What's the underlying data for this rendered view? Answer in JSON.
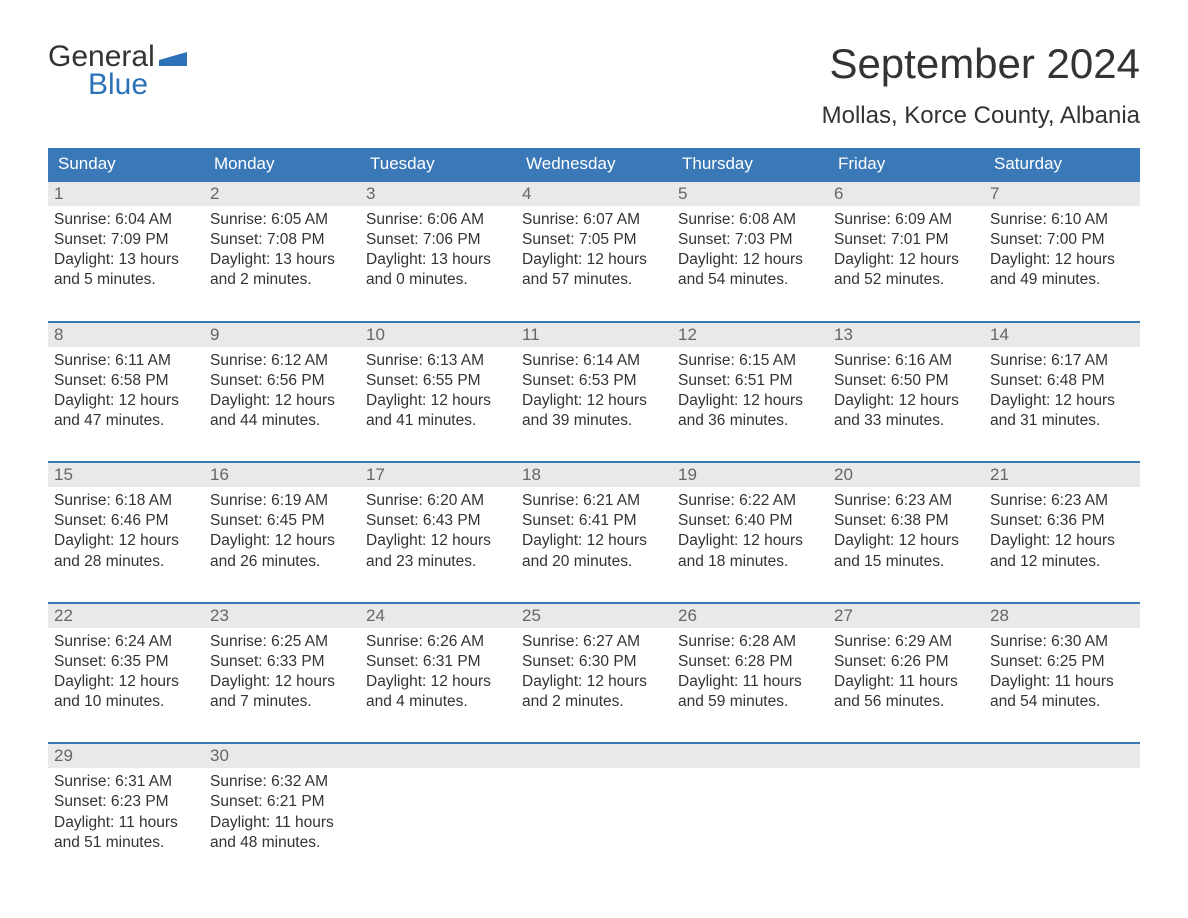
{
  "brand": {
    "word1": "General",
    "word2": "Blue",
    "word1_color": "#333333",
    "word2_color": "#2c72b8",
    "flag_color": "#2c72b8"
  },
  "title": "September 2024",
  "location": "Mollas, Korce County, Albania",
  "colors": {
    "header_bg": "#3b78b8",
    "header_fg": "#ffffff",
    "row_divider": "#3b78b8",
    "daynum_bg": "#e9e9e9",
    "daynum_fg": "#666666",
    "text": "#333333",
    "background": "#ffffff"
  },
  "typography": {
    "title_fontsize": 42,
    "location_fontsize": 24,
    "dow_fontsize": 17,
    "body_fontsize": 15.5
  },
  "days_of_week": [
    "Sunday",
    "Monday",
    "Tuesday",
    "Wednesday",
    "Thursday",
    "Friday",
    "Saturday"
  ],
  "weeks": [
    [
      {
        "n": "1",
        "sunrise": "Sunrise: 6:04 AM",
        "sunset": "Sunset: 7:09 PM",
        "d1": "Daylight: 13 hours",
        "d2": "and 5 minutes."
      },
      {
        "n": "2",
        "sunrise": "Sunrise: 6:05 AM",
        "sunset": "Sunset: 7:08 PM",
        "d1": "Daylight: 13 hours",
        "d2": "and 2 minutes."
      },
      {
        "n": "3",
        "sunrise": "Sunrise: 6:06 AM",
        "sunset": "Sunset: 7:06 PM",
        "d1": "Daylight: 13 hours",
        "d2": "and 0 minutes."
      },
      {
        "n": "4",
        "sunrise": "Sunrise: 6:07 AM",
        "sunset": "Sunset: 7:05 PM",
        "d1": "Daylight: 12 hours",
        "d2": "and 57 minutes."
      },
      {
        "n": "5",
        "sunrise": "Sunrise: 6:08 AM",
        "sunset": "Sunset: 7:03 PM",
        "d1": "Daylight: 12 hours",
        "d2": "and 54 minutes."
      },
      {
        "n": "6",
        "sunrise": "Sunrise: 6:09 AM",
        "sunset": "Sunset: 7:01 PM",
        "d1": "Daylight: 12 hours",
        "d2": "and 52 minutes."
      },
      {
        "n": "7",
        "sunrise": "Sunrise: 6:10 AM",
        "sunset": "Sunset: 7:00 PM",
        "d1": "Daylight: 12 hours",
        "d2": "and 49 minutes."
      }
    ],
    [
      {
        "n": "8",
        "sunrise": "Sunrise: 6:11 AM",
        "sunset": "Sunset: 6:58 PM",
        "d1": "Daylight: 12 hours",
        "d2": "and 47 minutes."
      },
      {
        "n": "9",
        "sunrise": "Sunrise: 6:12 AM",
        "sunset": "Sunset: 6:56 PM",
        "d1": "Daylight: 12 hours",
        "d2": "and 44 minutes."
      },
      {
        "n": "10",
        "sunrise": "Sunrise: 6:13 AM",
        "sunset": "Sunset: 6:55 PM",
        "d1": "Daylight: 12 hours",
        "d2": "and 41 minutes."
      },
      {
        "n": "11",
        "sunrise": "Sunrise: 6:14 AM",
        "sunset": "Sunset: 6:53 PM",
        "d1": "Daylight: 12 hours",
        "d2": "and 39 minutes."
      },
      {
        "n": "12",
        "sunrise": "Sunrise: 6:15 AM",
        "sunset": "Sunset: 6:51 PM",
        "d1": "Daylight: 12 hours",
        "d2": "and 36 minutes."
      },
      {
        "n": "13",
        "sunrise": "Sunrise: 6:16 AM",
        "sunset": "Sunset: 6:50 PM",
        "d1": "Daylight: 12 hours",
        "d2": "and 33 minutes."
      },
      {
        "n": "14",
        "sunrise": "Sunrise: 6:17 AM",
        "sunset": "Sunset: 6:48 PM",
        "d1": "Daylight: 12 hours",
        "d2": "and 31 minutes."
      }
    ],
    [
      {
        "n": "15",
        "sunrise": "Sunrise: 6:18 AM",
        "sunset": "Sunset: 6:46 PM",
        "d1": "Daylight: 12 hours",
        "d2": "and 28 minutes."
      },
      {
        "n": "16",
        "sunrise": "Sunrise: 6:19 AM",
        "sunset": "Sunset: 6:45 PM",
        "d1": "Daylight: 12 hours",
        "d2": "and 26 minutes."
      },
      {
        "n": "17",
        "sunrise": "Sunrise: 6:20 AM",
        "sunset": "Sunset: 6:43 PM",
        "d1": "Daylight: 12 hours",
        "d2": "and 23 minutes."
      },
      {
        "n": "18",
        "sunrise": "Sunrise: 6:21 AM",
        "sunset": "Sunset: 6:41 PM",
        "d1": "Daylight: 12 hours",
        "d2": "and 20 minutes."
      },
      {
        "n": "19",
        "sunrise": "Sunrise: 6:22 AM",
        "sunset": "Sunset: 6:40 PM",
        "d1": "Daylight: 12 hours",
        "d2": "and 18 minutes."
      },
      {
        "n": "20",
        "sunrise": "Sunrise: 6:23 AM",
        "sunset": "Sunset: 6:38 PM",
        "d1": "Daylight: 12 hours",
        "d2": "and 15 minutes."
      },
      {
        "n": "21",
        "sunrise": "Sunrise: 6:23 AM",
        "sunset": "Sunset: 6:36 PM",
        "d1": "Daylight: 12 hours",
        "d2": "and 12 minutes."
      }
    ],
    [
      {
        "n": "22",
        "sunrise": "Sunrise: 6:24 AM",
        "sunset": "Sunset: 6:35 PM",
        "d1": "Daylight: 12 hours",
        "d2": "and 10 minutes."
      },
      {
        "n": "23",
        "sunrise": "Sunrise: 6:25 AM",
        "sunset": "Sunset: 6:33 PM",
        "d1": "Daylight: 12 hours",
        "d2": "and 7 minutes."
      },
      {
        "n": "24",
        "sunrise": "Sunrise: 6:26 AM",
        "sunset": "Sunset: 6:31 PM",
        "d1": "Daylight: 12 hours",
        "d2": "and 4 minutes."
      },
      {
        "n": "25",
        "sunrise": "Sunrise: 6:27 AM",
        "sunset": "Sunset: 6:30 PM",
        "d1": "Daylight: 12 hours",
        "d2": "and 2 minutes."
      },
      {
        "n": "26",
        "sunrise": "Sunrise: 6:28 AM",
        "sunset": "Sunset: 6:28 PM",
        "d1": "Daylight: 11 hours",
        "d2": "and 59 minutes."
      },
      {
        "n": "27",
        "sunrise": "Sunrise: 6:29 AM",
        "sunset": "Sunset: 6:26 PM",
        "d1": "Daylight: 11 hours",
        "d2": "and 56 minutes."
      },
      {
        "n": "28",
        "sunrise": "Sunrise: 6:30 AM",
        "sunset": "Sunset: 6:25 PM",
        "d1": "Daylight: 11 hours",
        "d2": "and 54 minutes."
      }
    ],
    [
      {
        "n": "29",
        "sunrise": "Sunrise: 6:31 AM",
        "sunset": "Sunset: 6:23 PM",
        "d1": "Daylight: 11 hours",
        "d2": "and 51 minutes."
      },
      {
        "n": "30",
        "sunrise": "Sunrise: 6:32 AM",
        "sunset": "Sunset: 6:21 PM",
        "d1": "Daylight: 11 hours",
        "d2": "and 48 minutes."
      },
      null,
      null,
      null,
      null,
      null
    ]
  ]
}
